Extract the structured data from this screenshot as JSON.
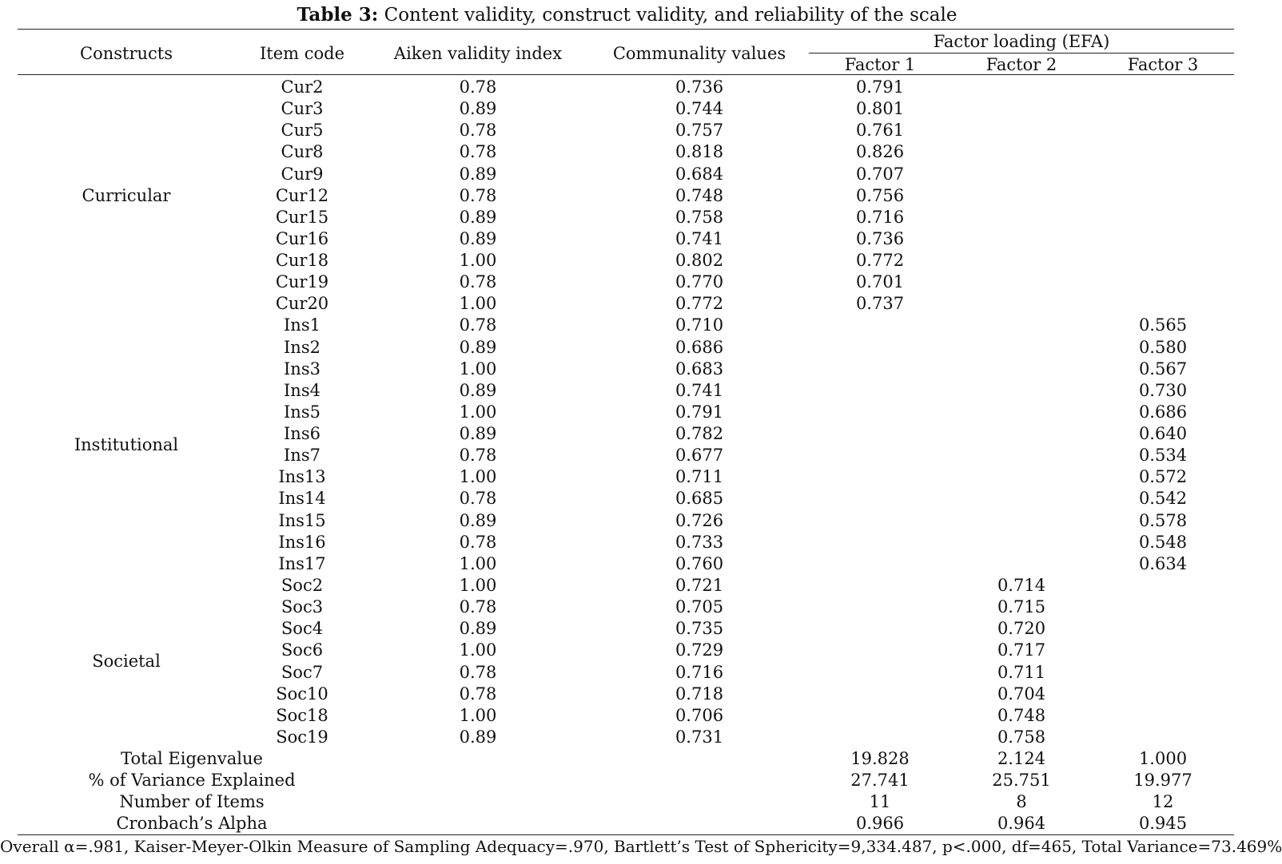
{
  "title": {
    "label": "Table 3:",
    "text": "Content validity, construct validity, and reliability of the scale"
  },
  "headers": {
    "constructs": "Constructs",
    "item_code": "Item code",
    "aiken": "Aiken validity index",
    "communality": "Communality values",
    "factor_group": "Factor loading (EFA)",
    "factor1": "Factor 1",
    "factor2": "Factor 2",
    "factor3": "Factor 3"
  },
  "constructs": [
    {
      "name": "Curricular",
      "start": 0,
      "count": 11
    },
    {
      "name": "Institutional",
      "start": 11,
      "count": 12
    },
    {
      "name": "Societal",
      "start": 23,
      "count": 8
    }
  ],
  "rows": [
    {
      "item": "Cur2",
      "aiken": "0.78",
      "comm": "0.736",
      "f1": "0.791",
      "f2": "",
      "f3": ""
    },
    {
      "item": "Cur3",
      "aiken": "0.89",
      "comm": "0.744",
      "f1": "0.801",
      "f2": "",
      "f3": ""
    },
    {
      "item": "Cur5",
      "aiken": "0.78",
      "comm": "0.757",
      "f1": "0.761",
      "f2": "",
      "f3": ""
    },
    {
      "item": "Cur8",
      "aiken": "0.78",
      "comm": "0.818",
      "f1": "0.826",
      "f2": "",
      "f3": ""
    },
    {
      "item": "Cur9",
      "aiken": "0.89",
      "comm": "0.684",
      "f1": "0.707",
      "f2": "",
      "f3": ""
    },
    {
      "item": "Cur12",
      "aiken": "0.78",
      "comm": "0.748",
      "f1": "0.756",
      "f2": "",
      "f3": ""
    },
    {
      "item": "Cur15",
      "aiken": "0.89",
      "comm": "0.758",
      "f1": "0.716",
      "f2": "",
      "f3": ""
    },
    {
      "item": "Cur16",
      "aiken": "0.89",
      "comm": "0.741",
      "f1": "0.736",
      "f2": "",
      "f3": ""
    },
    {
      "item": "Cur18",
      "aiken": "1.00",
      "comm": "0.802",
      "f1": "0.772",
      "f2": "",
      "f3": ""
    },
    {
      "item": "Cur19",
      "aiken": "0.78",
      "comm": "0.770",
      "f1": "0.701",
      "f2": "",
      "f3": ""
    },
    {
      "item": "Cur20",
      "aiken": "1.00",
      "comm": "0.772",
      "f1": "0.737",
      "f2": "",
      "f3": ""
    },
    {
      "item": "Ins1",
      "aiken": "0.78",
      "comm": "0.710",
      "f1": "",
      "f2": "",
      "f3": "0.565"
    },
    {
      "item": "Ins2",
      "aiken": "0.89",
      "comm": "0.686",
      "f1": "",
      "f2": "",
      "f3": "0.580"
    },
    {
      "item": "Ins3",
      "aiken": "1.00",
      "comm": "0.683",
      "f1": "",
      "f2": "",
      "f3": "0.567"
    },
    {
      "item": "Ins4",
      "aiken": "0.89",
      "comm": "0.741",
      "f1": "",
      "f2": "",
      "f3": "0.730"
    },
    {
      "item": "Ins5",
      "aiken": "1.00",
      "comm": "0.791",
      "f1": "",
      "f2": "",
      "f3": "0.686"
    },
    {
      "item": "Ins6",
      "aiken": "0.89",
      "comm": "0.782",
      "f1": "",
      "f2": "",
      "f3": "0.640"
    },
    {
      "item": "Ins7",
      "aiken": "0.78",
      "comm": "0.677",
      "f1": "",
      "f2": "",
      "f3": "0.534"
    },
    {
      "item": "Ins13",
      "aiken": "1.00",
      "comm": "0.711",
      "f1": "",
      "f2": "",
      "f3": "0.572"
    },
    {
      "item": "Ins14",
      "aiken": "0.78",
      "comm": "0.685",
      "f1": "",
      "f2": "",
      "f3": "0.542"
    },
    {
      "item": "Ins15",
      "aiken": "0.89",
      "comm": "0.726",
      "f1": "",
      "f2": "",
      "f3": "0.578"
    },
    {
      "item": "Ins16",
      "aiken": "0.78",
      "comm": "0.733",
      "f1": "",
      "f2": "",
      "f3": "0.548"
    },
    {
      "item": "Ins17",
      "aiken": "1.00",
      "comm": "0.760",
      "f1": "",
      "f2": "",
      "f3": "0.634"
    },
    {
      "item": "Soc2",
      "aiken": "1.00",
      "comm": "0.721",
      "f1": "",
      "f2": "0.714",
      "f3": ""
    },
    {
      "item": "Soc3",
      "aiken": "0.78",
      "comm": "0.705",
      "f1": "",
      "f2": "0.715",
      "f3": ""
    },
    {
      "item": "Soc4",
      "aiken": "0.89",
      "comm": "0.735",
      "f1": "",
      "f2": "0.720",
      "f3": ""
    },
    {
      "item": "Soc6",
      "aiken": "1.00",
      "comm": "0.729",
      "f1": "",
      "f2": "0.717",
      "f3": ""
    },
    {
      "item": "Soc7",
      "aiken": "0.78",
      "comm": "0.716",
      "f1": "",
      "f2": "0.711",
      "f3": ""
    },
    {
      "item": "Soc10",
      "aiken": "0.78",
      "comm": "0.718",
      "f1": "",
      "f2": "0.704",
      "f3": ""
    },
    {
      "item": "Soc18",
      "aiken": "1.00",
      "comm": "0.706",
      "f1": "",
      "f2": "0.748",
      "f3": ""
    },
    {
      "item": "Soc19",
      "aiken": "0.89",
      "comm": "0.731",
      "f1": "",
      "f2": "0.758",
      "f3": ""
    }
  ],
  "summary": [
    {
      "label": "Total Eigenvalue",
      "f1": "19.828",
      "f2": "2.124",
      "f3": "1.000"
    },
    {
      "label": "% of Variance Explained",
      "f1": "27.741",
      "f2": "25.751",
      "f3": "19.977"
    },
    {
      "label": "Number of Items",
      "f1": "11",
      "f2": "8",
      "f3": "12"
    },
    {
      "label": "Cronbach’s Alpha",
      "f1": "0.966",
      "f2": "0.964",
      "f3": "0.945"
    }
  ],
  "note": "Overall α=.981, Kaiser-Meyer-Olkin Measure of Sampling Adequacy=.970, Bartlett’s Test of Sphericity=9,334.487, p<.000, df=465, Total Variance=73.469%"
}
